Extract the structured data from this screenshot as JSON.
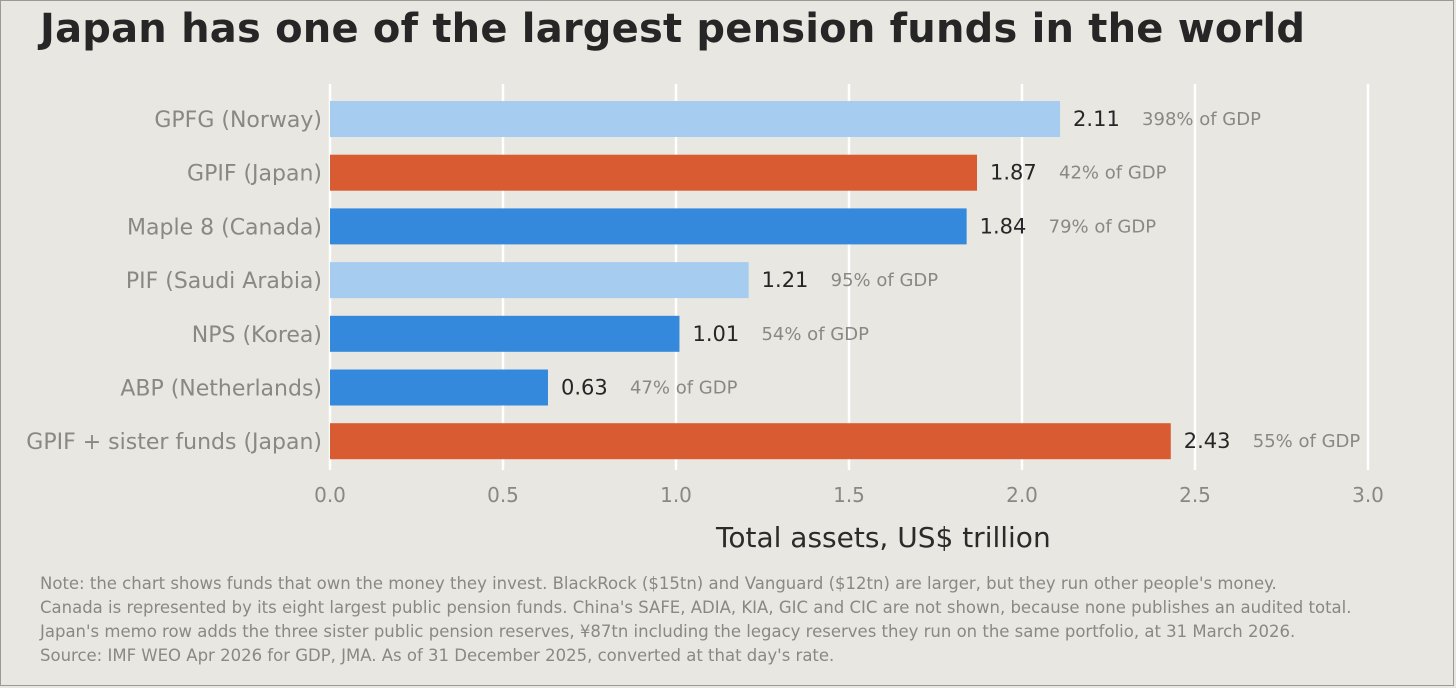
{
  "title": "Japan has one of the largest pension funds in the world",
  "colors": {
    "background": "#e9e7e1",
    "japan": "#d95b31",
    "dark_blue": "#3589dd",
    "light_blue": "#a6cdf0",
    "grid": "#ffffff",
    "tick_text": "#8a8883"
  },
  "chart_data": {
    "type": "bar",
    "orientation": "horizontal",
    "xlabel": "Total assets, US$ trillion",
    "xlim": [
      0,
      3.0
    ],
    "xticks": [
      "0.0",
      "0.5",
      "1.0",
      "1.5",
      "2.0",
      "2.5",
      "3.0"
    ],
    "grid": "vertical",
    "categories": [
      "GPFG (Norway)",
      "GPIF (Japan)",
      "Maple 8 (Canada)",
      "PIF (Saudi Arabia)",
      "NPS (Korea)",
      "ABP (Netherlands)",
      "GPIF + sister funds (Japan)"
    ],
    "values": [
      2.11,
      1.87,
      1.84,
      1.21,
      1.01,
      0.63,
      2.43
    ],
    "value_labels": [
      "2.11",
      "1.87",
      "1.84",
      "1.21",
      "1.01",
      "0.63",
      "2.43"
    ],
    "gdp_labels": [
      "398% of GDP",
      "42% of GDP",
      "79% of GDP",
      "95% of GDP",
      "54% of GDP",
      "47% of GDP",
      "55% of GDP"
    ],
    "bar_colors": [
      "#a6cdf0",
      "#d95b31",
      "#3589dd",
      "#a6cdf0",
      "#3589dd",
      "#3589dd",
      "#d95b31"
    ]
  },
  "notes": [
    "Note: the chart shows funds that own the money they invest. BlackRock ($15tn) and Vanguard ($12tn) are larger, but they run other people's money.",
    "Canada is represented by its eight largest public pension funds. China's SAFE, ADIA, KIA, GIC and CIC are not shown, because none publishes an audited total.",
    "Japan's memo row adds the three sister public pension reserves, ¥87tn including the legacy reserves they run on the same portfolio, at 31 March 2026.",
    "Source: IMF WEO Apr 2026 for GDP, JMA. As of 31 December 2025, converted at that day's rate."
  ]
}
